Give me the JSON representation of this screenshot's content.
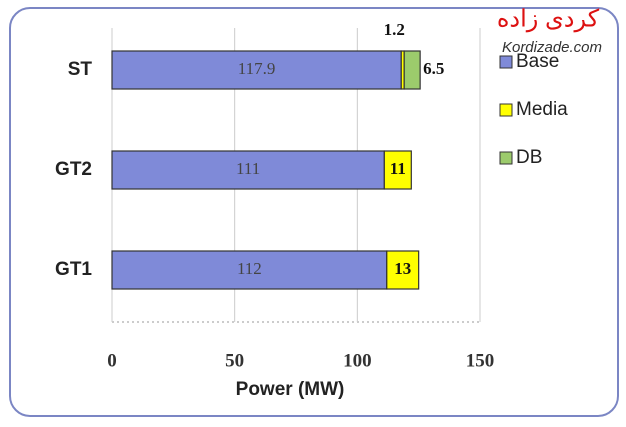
{
  "chart_data": {
    "type": "stacked-barh",
    "categories": [
      "ST",
      "GT2",
      "GT1"
    ],
    "series": [
      {
        "name": "Base",
        "color": "#7f8ad8",
        "values": [
          117.9,
          111,
          112
        ]
      },
      {
        "name": "Media",
        "color": "#ffff00",
        "values": [
          1.2,
          11,
          13
        ]
      },
      {
        "name": "DB",
        "color": "#9ccb6c",
        "values": [
          6.5,
          null,
          null
        ]
      }
    ],
    "xlim": [
      0,
      150
    ],
    "xticks": [
      0,
      50,
      100,
      150
    ],
    "xlabel": "Power (MW)",
    "grid": true,
    "legend": "right"
  },
  "watermark": {
    "title": "کردی زاده",
    "url": "Kordizade.com"
  }
}
